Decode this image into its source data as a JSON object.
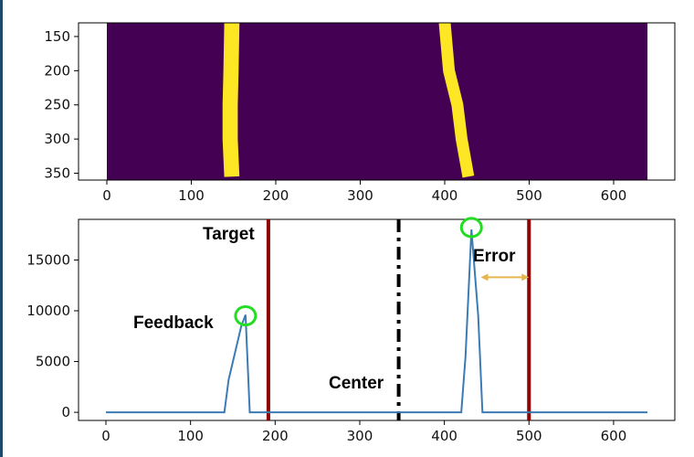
{
  "chart_data": [
    {
      "type": "heatmap",
      "description_free": true,
      "xlim": [
        0,
        640
      ],
      "ylim": [
        360,
        130
      ],
      "x_ticks": [
        0,
        100,
        200,
        300,
        400,
        500,
        600
      ],
      "y_ticks": [
        150,
        200,
        250,
        300,
        350
      ],
      "colors": {
        "background": "#440154",
        "lane": "#fde725"
      },
      "lanes": [
        {
          "points": [
            [
              148,
              130
            ],
            [
              147,
              200
            ],
            [
              146,
              250
            ],
            [
              146,
              300
            ],
            [
              148,
              355
            ]
          ],
          "width": 18
        },
        {
          "points": [
            [
              400,
              130
            ],
            [
              405,
              200
            ],
            [
              415,
              250
            ],
            [
              420,
              300
            ],
            [
              428,
              355
            ]
          ],
          "width": 14
        }
      ]
    },
    {
      "type": "line",
      "xlim": [
        0,
        640
      ],
      "ylim": [
        -800,
        19000
      ],
      "x_ticks": [
        0,
        100,
        200,
        300,
        400,
        500,
        600
      ],
      "y_ticks": [
        0,
        5000,
        10000,
        15000
      ],
      "series": [
        {
          "color": "#3b7bb4",
          "x": [
            0,
            140,
            145,
            160,
            165,
            170,
            420,
            425,
            432,
            440,
            445,
            640
          ],
          "y": [
            0,
            0,
            3200,
            8500,
            9600,
            0,
            0,
            5500,
            18000,
            9500,
            0,
            0
          ]
        }
      ],
      "vlines": [
        {
          "x": 192,
          "color": "#8b0000",
          "style": "solid"
        },
        {
          "x": 500,
          "color": "#8b0000",
          "style": "solid"
        },
        {
          "x": 346,
          "color": "#000000",
          "style": "dashdot"
        }
      ],
      "annotations": {
        "target": "Target",
        "feedback": "Feedback",
        "center": "Center",
        "error": "Error"
      },
      "markers": [
        {
          "x": 165,
          "y": 9500,
          "color": "#22dd22"
        },
        {
          "x": 432,
          "y": 18200,
          "color": "#22dd22"
        }
      ],
      "error_arrow": {
        "x_from": 443,
        "x_to": 500,
        "y": 13300,
        "color": "#e6b64a"
      }
    }
  ]
}
